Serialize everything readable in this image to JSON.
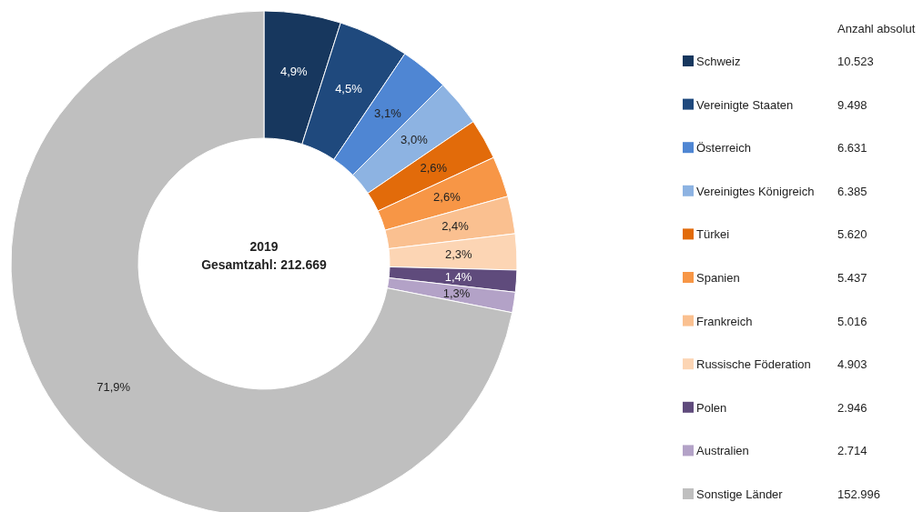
{
  "chart_data": {
    "type": "donut",
    "legend_title": "Anzahl absolut",
    "legend": "right",
    "categories": [
      "Schweiz",
      "Vereinigte Staaten",
      "Österreich",
      "Vereinigtes Königreich",
      "Türkei",
      "Spanien",
      "Frankreich",
      "Russische Föderation",
      "Polen",
      "Australien",
      "Sonstige Länder"
    ],
    "values": [
      4.9,
      4.5,
      3.1,
      3.0,
      2.6,
      2.6,
      2.4,
      2.3,
      1.4,
      1.3,
      71.9
    ],
    "value_labels": [
      "4,9%",
      "4,5%",
      "3,1%",
      "3,0%",
      "2,6%",
      "2,6%",
      "2,4%",
      "2,3%",
      "1,4%",
      "1,3%",
      "71,9%"
    ],
    "colors": [
      "#17375e",
      "#1f497d",
      "#4f86d3",
      "#8db3e2",
      "#e26b0a",
      "#f79646",
      "#fac090",
      "#fcd5b4",
      "#5f4b7c",
      "#b3a2c7",
      "#bfbfbf"
    ],
    "annotations": [
      "2019",
      "Gesamtzahl: 212.669",
      "10.523",
      "9.498",
      "6.631",
      "6.385",
      "5.620",
      "5.437",
      "5.016",
      "4.903",
      "2.946",
      "2.714",
      "152.996"
    ]
  }
}
